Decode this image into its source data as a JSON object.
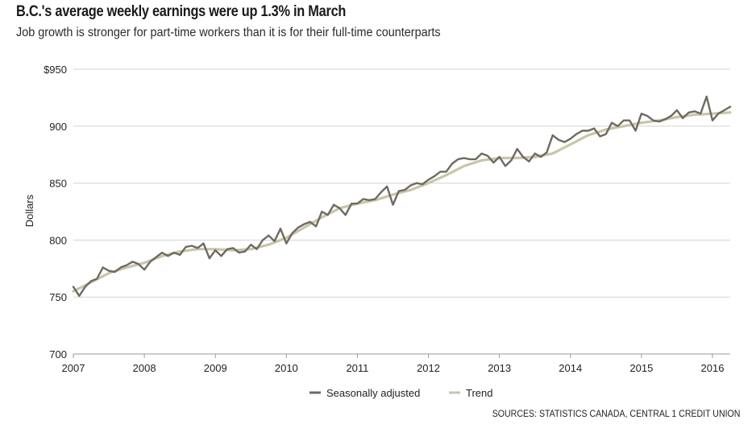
{
  "chart_data": {
    "type": "line",
    "title": "B.C.'s average weekly earnings were up 1.3% in March",
    "subtitle": "Job growth is stronger for part-time workers than it is for their full-time counterparts",
    "ylabel": "Dollars",
    "xlabel": "",
    "ylim": [
      700,
      950
    ],
    "xlim": [
      2007,
      2016.25
    ],
    "y_ticks": [
      700,
      750,
      800,
      850,
      900,
      950
    ],
    "y_tick_labels": [
      "700",
      "750",
      "800",
      "850",
      "900",
      "$950"
    ],
    "x_ticks": [
      2007,
      2008,
      2009,
      2010,
      2011,
      2012,
      2013,
      2014,
      2015,
      2016
    ],
    "x_tick_labels": [
      "2007",
      "2008",
      "2009",
      "2010",
      "2011",
      "2012",
      "2013",
      "2014",
      "2015",
      "2016"
    ],
    "grid": true,
    "legend_position": "bottom-center",
    "series": [
      {
        "name": "Seasonally adjusted",
        "color": "#6e6a62",
        "x": [
          2007.0,
          2007.083,
          2007.167,
          2007.25,
          2007.333,
          2007.417,
          2007.5,
          2007.583,
          2007.667,
          2007.75,
          2007.833,
          2007.917,
          2008.0,
          2008.083,
          2008.167,
          2008.25,
          2008.333,
          2008.417,
          2008.5,
          2008.583,
          2008.667,
          2008.75,
          2008.833,
          2008.917,
          2009.0,
          2009.083,
          2009.167,
          2009.25,
          2009.333,
          2009.417,
          2009.5,
          2009.583,
          2009.667,
          2009.75,
          2009.833,
          2009.917,
          2010.0,
          2010.083,
          2010.167,
          2010.25,
          2010.333,
          2010.417,
          2010.5,
          2010.583,
          2010.667,
          2010.75,
          2010.833,
          2010.917,
          2011.0,
          2011.083,
          2011.167,
          2011.25,
          2011.333,
          2011.417,
          2011.5,
          2011.583,
          2011.667,
          2011.75,
          2011.833,
          2011.917,
          2012.0,
          2012.083,
          2012.167,
          2012.25,
          2012.333,
          2012.417,
          2012.5,
          2012.583,
          2012.667,
          2012.75,
          2012.833,
          2012.917,
          2013.0,
          2013.083,
          2013.167,
          2013.25,
          2013.333,
          2013.417,
          2013.5,
          2013.583,
          2013.667,
          2013.75,
          2013.833,
          2013.917,
          2014.0,
          2014.083,
          2014.167,
          2014.25,
          2014.333,
          2014.417,
          2014.5,
          2014.583,
          2014.667,
          2014.75,
          2014.833,
          2014.917,
          2015.0,
          2015.083,
          2015.167,
          2015.25,
          2015.333,
          2015.417,
          2015.5,
          2015.583,
          2015.667,
          2015.75,
          2015.833,
          2015.917,
          2016.0,
          2016.083,
          2016.167,
          2016.25
        ],
        "values": [
          759,
          751,
          759,
          764,
          766,
          776,
          773,
          772,
          776,
          778,
          781,
          779,
          774,
          781,
          785,
          789,
          786,
          789,
          787,
          794,
          795,
          793,
          797,
          784,
          791,
          786,
          792,
          793,
          789,
          790,
          796,
          792,
          800,
          804,
          799,
          810,
          797,
          806,
          811,
          814,
          816,
          812,
          825,
          822,
          831,
          828,
          822,
          832,
          832,
          836,
          835,
          836,
          842,
          847,
          831,
          843,
          844,
          848,
          850,
          849,
          853,
          856,
          860,
          860,
          867,
          871,
          872,
          871,
          871,
          876,
          874,
          868,
          873,
          865,
          870,
          880,
          873,
          869,
          876,
          873,
          877,
          892,
          888,
          886,
          889,
          893,
          896,
          896,
          898,
          891,
          893,
          903,
          900,
          905,
          905,
          896,
          911,
          909,
          905,
          904,
          906,
          909,
          914,
          907,
          912,
          913,
          911,
          926,
          905,
          911,
          914,
          917
        ]
      },
      {
        "name": "Trend",
        "color": "#c8c6a6",
        "x": [
          2007.0,
          2007.25,
          2007.5,
          2007.75,
          2008.0,
          2008.25,
          2008.5,
          2008.75,
          2009.0,
          2009.25,
          2009.5,
          2009.75,
          2010.0,
          2010.25,
          2010.5,
          2010.75,
          2011.0,
          2011.25,
          2011.5,
          2011.75,
          2012.0,
          2012.25,
          2012.5,
          2012.75,
          2013.0,
          2013.25,
          2013.5,
          2013.75,
          2014.0,
          2014.25,
          2014.5,
          2014.75,
          2015.0,
          2015.25,
          2015.5,
          2015.75,
          2016.0,
          2016.25
        ],
        "values": [
          755,
          763,
          771,
          776,
          780,
          786,
          790,
          792,
          792,
          791,
          792,
          796,
          802,
          811,
          820,
          828,
          832,
          835,
          840,
          844,
          850,
          857,
          865,
          870,
          872,
          872,
          873,
          876,
          884,
          892,
          897,
          900,
          903,
          905,
          908,
          910,
          911,
          912
        ]
      }
    ],
    "source": "SOURCES: STATISTICS CANADA, CENTRAL 1 CREDIT UNION"
  }
}
